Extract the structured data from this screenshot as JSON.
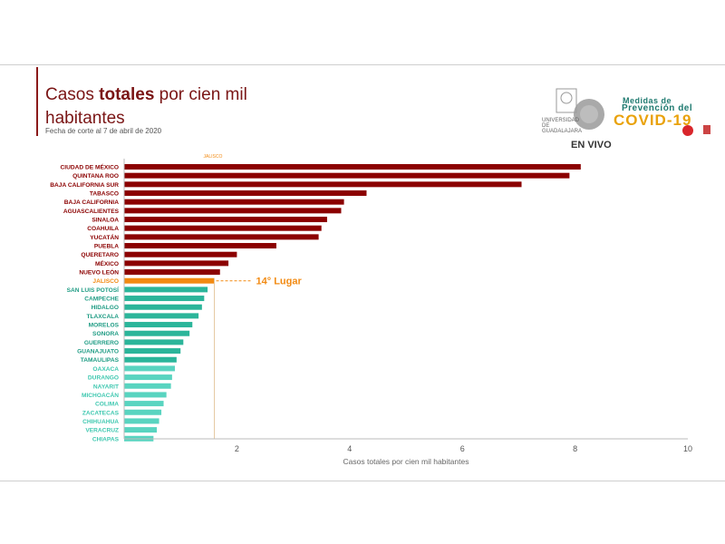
{
  "slide": {
    "title_part1": "Casos ",
    "title_bold": "totales",
    "title_part2": " por cien mil",
    "title_line2": "habitantes",
    "subtitle": "Fecha de corte al 7 de abril de 2020"
  },
  "overlay": {
    "live_label": "EN VIVO",
    "covid_line1": "Medidas de",
    "covid_line2": "Prevención del",
    "covid_main": "COVID-19",
    "university_text": "UNIVERSIDAD DE GUADALAJARA"
  },
  "colors": {
    "dark_red": "#8b0000",
    "highlight": "#f28a12",
    "teal": "#2bb59a",
    "light_teal": "#59d4c0"
  },
  "chart_data": {
    "type": "bar",
    "orientation": "horizontal",
    "title": "Casos totales por cien mil habitantes",
    "subtitle": "Fecha de corte al 7 de abril de 2020",
    "xlabel": "Casos totales por cien mil habitantes",
    "ylabel": "",
    "xlim": [
      0,
      10
    ],
    "xticks": [
      2,
      4,
      6,
      8,
      10
    ],
    "grid": false,
    "highlight_label": "JALISCO",
    "annotation": "14° Lugar",
    "categories": [
      "CIUDAD DE MÉXICO",
      "QUINTANA ROO",
      "BAJA CALIFORNIA SUR",
      "TABASCO",
      "BAJA CALIFORNIA",
      "AGUASCALIENTES",
      "SINALOA",
      "COAHUILA",
      "YUCATÁN",
      "PUEBLA",
      "QUERETARO",
      "MÉXICO",
      "NUEVO LEÓN",
      "JALISCO",
      "SAN LUIS POTOSÍ",
      "CAMPECHE",
      "HIDALGO",
      "TLAXCALA",
      "MORELOS",
      "SONORA",
      "GUERRERO",
      "GUANAJUATO",
      "TAMAULIPAS",
      "OAXACA",
      "DURANGO",
      "NAYARIT",
      "MICHOACÁN",
      "COLIMA",
      "ZACATECAS",
      "CHIHUAHUA",
      "VERACRUZ",
      "CHIAPAS"
    ],
    "values": [
      8.1,
      7.9,
      7.05,
      4.3,
      3.9,
      3.85,
      3.6,
      3.5,
      3.45,
      2.7,
      2.0,
      1.85,
      1.7,
      1.6,
      1.48,
      1.42,
      1.38,
      1.32,
      1.21,
      1.16,
      1.05,
      1.0,
      0.93,
      0.9,
      0.85,
      0.83,
      0.75,
      0.7,
      0.66,
      0.62,
      0.58,
      0.52
    ],
    "bar_colors": [
      "#8b0000",
      "#8b0000",
      "#8b0000",
      "#8b0000",
      "#8b0000",
      "#8b0000",
      "#8b0000",
      "#8b0000",
      "#8b0000",
      "#8b0000",
      "#8b0000",
      "#8b0000",
      "#8b0000",
      "#f28a12",
      "#2bb59a",
      "#2bb59a",
      "#2bb59a",
      "#2bb59a",
      "#2bb59a",
      "#2bb59a",
      "#2bb59a",
      "#2bb59a",
      "#2bb59a",
      "#59d4c0",
      "#59d4c0",
      "#59d4c0",
      "#59d4c0",
      "#59d4c0",
      "#59d4c0",
      "#59d4c0",
      "#59d4c0",
      "#59d4c0"
    ],
    "label_colors": [
      "#8b0000",
      "#8b0000",
      "#8b0000",
      "#8b0000",
      "#8b0000",
      "#8b0000",
      "#8b0000",
      "#8b0000",
      "#8b0000",
      "#8b0000",
      "#8b0000",
      "#8b0000",
      "#8b0000",
      "#f28a12",
      "#1f9c84",
      "#1f9c84",
      "#1f9c84",
      "#1f9c84",
      "#1f9c84",
      "#1f9c84",
      "#1f9c84",
      "#1f9c84",
      "#1f9c84",
      "#3fc8b0",
      "#3fc8b0",
      "#3fc8b0",
      "#3fc8b0",
      "#3fc8b0",
      "#3fc8b0",
      "#3fc8b0",
      "#3fc8b0",
      "#3fc8b0"
    ]
  }
}
